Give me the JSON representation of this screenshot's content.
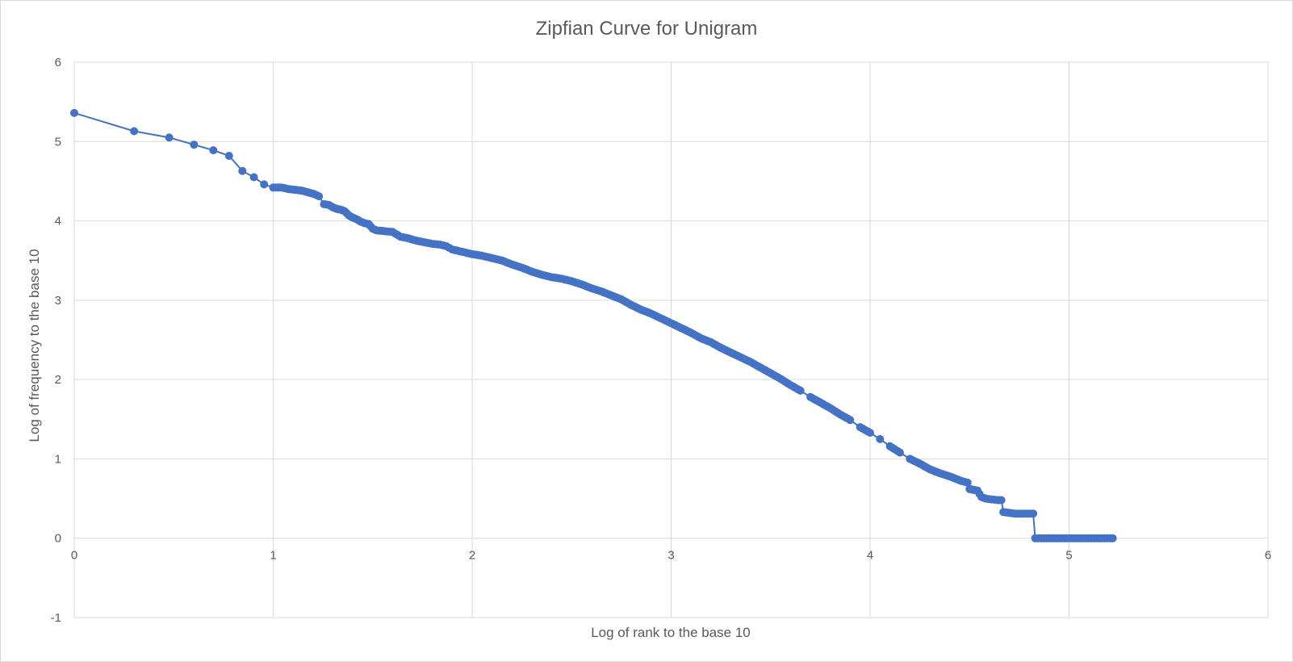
{
  "chart_data": {
    "type": "scatter",
    "title": "Zipfian Curve for Unigram",
    "xlabel": "Log of rank to the base 10",
    "ylabel": "Log of frequency to the base 10",
    "xlim": [
      0,
      6
    ],
    "ylim": [
      -1,
      6
    ],
    "x_ticks": [
      "0",
      "1",
      "2",
      "3",
      "4",
      "5",
      "6"
    ],
    "y_ticks": [
      "-1",
      "0",
      "1",
      "2",
      "3",
      "4",
      "5",
      "6"
    ],
    "grid": true,
    "legend": "none",
    "series_color": "#4472c4",
    "markers": "circle",
    "lines": true,
    "points": [
      [
        0.0,
        5.36
      ],
      [
        0.301,
        5.13
      ],
      [
        0.477,
        5.05
      ],
      [
        0.602,
        4.96
      ],
      [
        0.699,
        4.89
      ],
      [
        0.778,
        4.82
      ],
      [
        0.845,
        4.63
      ],
      [
        0.903,
        4.55
      ],
      [
        0.954,
        4.46
      ],
      [
        1.0,
        4.42
      ],
      [
        1.041,
        4.42
      ],
      [
        1.079,
        4.4
      ],
      [
        1.114,
        4.39
      ],
      [
        1.146,
        4.38
      ],
      [
        1.176,
        4.36
      ],
      [
        1.204,
        4.34
      ],
      [
        1.23,
        4.31
      ],
      [
        1.255,
        4.21
      ],
      [
        1.28,
        4.2
      ],
      [
        1.3,
        4.17
      ],
      [
        1.32,
        4.15
      ],
      [
        1.34,
        4.14
      ],
      [
        1.36,
        4.12
      ],
      [
        1.38,
        4.07
      ],
      [
        1.4,
        4.04
      ],
      [
        1.42,
        4.02
      ],
      [
        1.44,
        3.99
      ],
      [
        1.46,
        3.97
      ],
      [
        1.48,
        3.96
      ],
      [
        1.5,
        3.9
      ],
      [
        1.52,
        3.88
      ],
      [
        1.56,
        3.87
      ],
      [
        1.6,
        3.86
      ],
      [
        1.64,
        3.8
      ],
      [
        1.68,
        3.78
      ],
      [
        1.72,
        3.75
      ],
      [
        1.76,
        3.73
      ],
      [
        1.8,
        3.71
      ],
      [
        1.84,
        3.7
      ],
      [
        1.87,
        3.68
      ],
      [
        1.9,
        3.64
      ],
      [
        1.95,
        3.61
      ],
      [
        2.0,
        3.58
      ],
      [
        2.05,
        3.56
      ],
      [
        2.1,
        3.53
      ],
      [
        2.15,
        3.5
      ],
      [
        2.2,
        3.45
      ],
      [
        2.25,
        3.41
      ],
      [
        2.3,
        3.36
      ],
      [
        2.35,
        3.32
      ],
      [
        2.4,
        3.29
      ],
      [
        2.45,
        3.27
      ],
      [
        2.5,
        3.24
      ],
      [
        2.55,
        3.2
      ],
      [
        2.6,
        3.15
      ],
      [
        2.65,
        3.11
      ],
      [
        2.7,
        3.06
      ],
      [
        2.75,
        3.01
      ],
      [
        2.8,
        2.94
      ],
      [
        2.85,
        2.88
      ],
      [
        2.9,
        2.83
      ],
      [
        2.95,
        2.77
      ],
      [
        3.0,
        2.71
      ],
      [
        3.05,
        2.65
      ],
      [
        3.1,
        2.59
      ],
      [
        3.15,
        2.52
      ],
      [
        3.2,
        2.47
      ],
      [
        3.25,
        2.4
      ],
      [
        3.3,
        2.34
      ],
      [
        3.35,
        2.28
      ],
      [
        3.4,
        2.22
      ],
      [
        3.45,
        2.15
      ],
      [
        3.5,
        2.08
      ],
      [
        3.55,
        2.01
      ],
      [
        3.6,
        1.93
      ],
      [
        3.65,
        1.86
      ],
      [
        3.7,
        1.78
      ],
      [
        3.75,
        1.71
      ],
      [
        3.8,
        1.64
      ],
      [
        3.85,
        1.56
      ],
      [
        3.9,
        1.49
      ],
      [
        3.95,
        1.4
      ],
      [
        4.0,
        1.33
      ],
      [
        4.05,
        1.25
      ],
      [
        4.1,
        1.16
      ],
      [
        4.15,
        1.08
      ],
      [
        4.2,
        1.0
      ],
      [
        4.25,
        0.94
      ],
      [
        4.3,
        0.87
      ],
      [
        4.35,
        0.82
      ],
      [
        4.4,
        0.78
      ],
      [
        4.42,
        0.76
      ],
      [
        4.44,
        0.74
      ],
      [
        4.46,
        0.72
      ],
      [
        4.49,
        0.7
      ],
      [
        4.5,
        0.62
      ],
      [
        4.52,
        0.61
      ],
      [
        4.54,
        0.6
      ],
      [
        4.56,
        0.52
      ],
      [
        4.58,
        0.5
      ],
      [
        4.61,
        0.49
      ],
      [
        4.64,
        0.48
      ],
      [
        4.66,
        0.48
      ],
      [
        4.67,
        0.33
      ],
      [
        4.7,
        0.32
      ],
      [
        4.73,
        0.31
      ],
      [
        4.76,
        0.31
      ],
      [
        4.79,
        0.31
      ],
      [
        4.82,
        0.31
      ],
      [
        4.83,
        0.0
      ],
      [
        4.86,
        0.0
      ],
      [
        4.9,
        0.0
      ],
      [
        4.94,
        0.0
      ],
      [
        4.98,
        0.0
      ],
      [
        5.02,
        0.0
      ],
      [
        5.06,
        0.0
      ],
      [
        5.1,
        0.0
      ],
      [
        5.14,
        0.0
      ],
      [
        5.18,
        0.0
      ],
      [
        5.22,
        0.0
      ]
    ]
  }
}
